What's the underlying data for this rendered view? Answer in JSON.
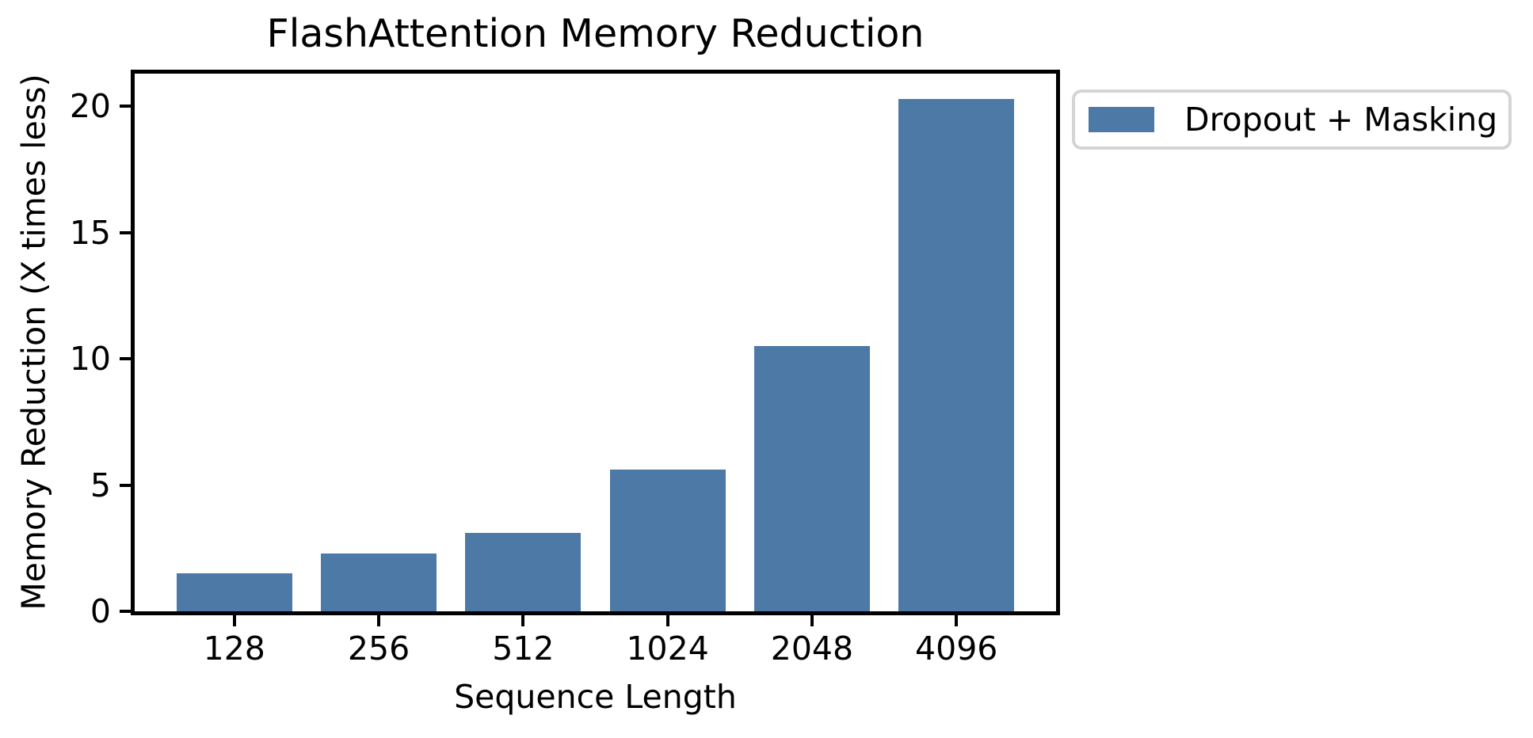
{
  "chart_data": {
    "type": "bar",
    "title": "FlashAttention Memory Reduction",
    "xlabel": "Sequence Length",
    "ylabel": "Memory Reduction (X times less)",
    "categories": [
      "128",
      "256",
      "512",
      "1024",
      "2048",
      "4096"
    ],
    "series": [
      {
        "name": "Dropout + Masking",
        "color": "#4d79a7",
        "values": [
          1.5,
          2.3,
          3.1,
          5.6,
          10.5,
          20.3
        ]
      }
    ],
    "yticks": [
      0,
      5,
      10,
      15,
      20
    ],
    "ylim": [
      0,
      21.3
    ],
    "xlim": [
      -0.69,
      5.69
    ],
    "bar_width": 0.8,
    "grid": false,
    "legend": {
      "label": "Dropout + Masking",
      "position": "upper right, outside axes"
    },
    "colors": {
      "bar": "#4d79a7",
      "text": "#000000",
      "axes": "#000000",
      "legend_border": "#d4d4d4",
      "background": "#ffffff"
    }
  }
}
